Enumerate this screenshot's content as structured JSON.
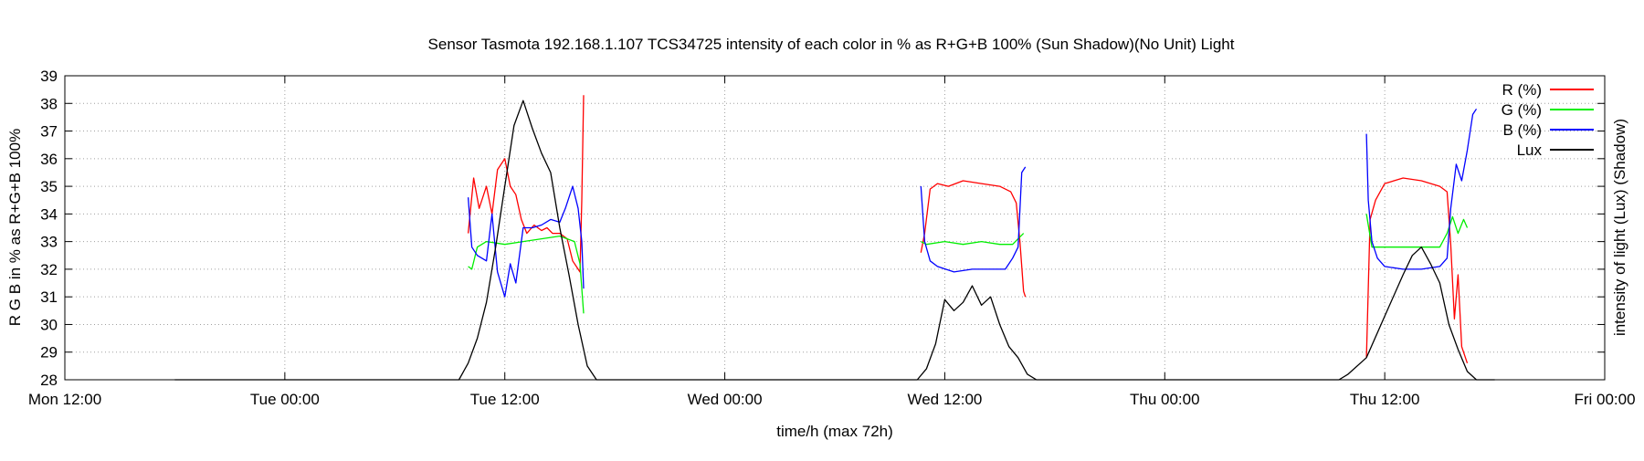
{
  "chart_data": {
    "type": "line",
    "title": "Sensor Tasmota 192.168.1.107 TCS34725 intensity of each color in % as R+G+B 100% (Sun Shadow)(No Unit) Light",
    "xlabel": "time/h (max 72h)",
    "ylabel": "R G B in % as R+G+B 100%",
    "y2label": "intensity of light (Lux) (Shadow)",
    "xlim": [
      0,
      84
    ],
    "ylim": [
      28,
      39
    ],
    "x_unit": "hours since Mon 12:00",
    "x_ticks": [
      {
        "x": 0,
        "label": "Mon 12:00"
      },
      {
        "x": 12,
        "label": "Tue 00:00"
      },
      {
        "x": 24,
        "label": "Tue 12:00"
      },
      {
        "x": 36,
        "label": "Wed 00:00"
      },
      {
        "x": 48,
        "label": "Wed 12:00"
      },
      {
        "x": 60,
        "label": "Thu 00:00"
      },
      {
        "x": 72,
        "label": "Thu 12:00"
      },
      {
        "x": 84,
        "label": "Fri 00:00"
      }
    ],
    "y_ticks": [
      28,
      29,
      30,
      31,
      32,
      33,
      34,
      35,
      36,
      37,
      38,
      39
    ],
    "grid": true,
    "legend_position": "top-right",
    "series": [
      {
        "name": "R (%)",
        "color": "#ff0000",
        "segments": [
          [
            [
              22.0,
              33.3
            ],
            [
              22.3,
              35.3
            ],
            [
              22.6,
              34.2
            ],
            [
              23.0,
              35.0
            ],
            [
              23.3,
              34.0
            ],
            [
              23.6,
              35.6
            ],
            [
              24.0,
              36.0
            ],
            [
              24.3,
              35.0
            ],
            [
              24.6,
              34.7
            ],
            [
              24.9,
              33.8
            ],
            [
              25.2,
              33.3
            ],
            [
              25.6,
              33.6
            ],
            [
              26.0,
              33.4
            ],
            [
              26.3,
              33.5
            ],
            [
              26.6,
              33.3
            ],
            [
              27.0,
              33.3
            ],
            [
              27.4,
              33.1
            ],
            [
              27.7,
              32.3
            ],
            [
              28.1,
              31.9
            ],
            [
              28.2,
              34.5
            ],
            [
              28.3,
              38.3
            ]
          ],
          [
            [
              46.7,
              32.6
            ],
            [
              46.9,
              33.3
            ],
            [
              47.2,
              34.9
            ],
            [
              47.6,
              35.1
            ],
            [
              48.2,
              35.0
            ],
            [
              49.0,
              35.2
            ],
            [
              50.0,
              35.1
            ],
            [
              51.0,
              35.0
            ],
            [
              51.6,
              34.8
            ],
            [
              51.9,
              34.4
            ],
            [
              52.1,
              33.0
            ],
            [
              52.3,
              31.2
            ],
            [
              52.4,
              31.0
            ]
          ],
          [
            [
              71.0,
              28.8
            ],
            [
              71.2,
              33.8
            ],
            [
              71.5,
              34.5
            ],
            [
              72.0,
              35.1
            ],
            [
              73.0,
              35.3
            ],
            [
              74.0,
              35.2
            ],
            [
              75.0,
              35.0
            ],
            [
              75.4,
              34.8
            ],
            [
              75.6,
              32.9
            ],
            [
              75.8,
              30.2
            ],
            [
              76.0,
              31.8
            ],
            [
              76.2,
              29.2
            ],
            [
              76.5,
              28.6
            ]
          ]
        ]
      },
      {
        "name": "G (%)",
        "color": "#00ee00",
        "segments": [
          [
            [
              22.0,
              32.1
            ],
            [
              22.2,
              32.0
            ],
            [
              22.5,
              32.8
            ],
            [
              23.0,
              33.0
            ],
            [
              24.0,
              32.9
            ],
            [
              25.0,
              33.0
            ],
            [
              26.0,
              33.1
            ],
            [
              27.0,
              33.2
            ],
            [
              27.8,
              33.0
            ],
            [
              28.1,
              32.2
            ],
            [
              28.3,
              30.4
            ]
          ],
          [
            [
              46.7,
              33.0
            ],
            [
              47.0,
              32.9
            ],
            [
              48.0,
              33.0
            ],
            [
              49.0,
              32.9
            ],
            [
              50.0,
              33.0
            ],
            [
              51.0,
              32.9
            ],
            [
              51.7,
              32.9
            ],
            [
              52.0,
              33.1
            ],
            [
              52.3,
              33.3
            ]
          ],
          [
            [
              71.0,
              34.0
            ],
            [
              71.3,
              32.8
            ],
            [
              72.0,
              32.8
            ],
            [
              73.0,
              32.8
            ],
            [
              74.0,
              32.8
            ],
            [
              75.0,
              32.8
            ],
            [
              75.4,
              33.3
            ],
            [
              75.7,
              33.9
            ],
            [
              76.0,
              33.3
            ],
            [
              76.3,
              33.8
            ],
            [
              76.5,
              33.5
            ]
          ]
        ]
      },
      {
        "name": "B (%)",
        "color": "#0000ff",
        "segments": [
          [
            [
              22.0,
              34.6
            ],
            [
              22.2,
              32.8
            ],
            [
              22.5,
              32.5
            ],
            [
              23.0,
              32.3
            ],
            [
              23.3,
              34.0
            ],
            [
              23.6,
              31.9
            ],
            [
              24.0,
              31.0
            ],
            [
              24.3,
              32.2
            ],
            [
              24.6,
              31.5
            ],
            [
              25.0,
              33.5
            ],
            [
              25.5,
              33.5
            ],
            [
              26.0,
              33.6
            ],
            [
              26.5,
              33.8
            ],
            [
              27.0,
              33.7
            ],
            [
              27.3,
              34.2
            ],
            [
              27.7,
              35.0
            ],
            [
              28.0,
              34.2
            ],
            [
              28.2,
              33.0
            ],
            [
              28.3,
              31.3
            ]
          ],
          [
            [
              46.7,
              35.0
            ],
            [
              46.9,
              33.0
            ],
            [
              47.2,
              32.3
            ],
            [
              47.6,
              32.1
            ],
            [
              48.5,
              31.9
            ],
            [
              49.5,
              32.0
            ],
            [
              50.5,
              32.0
            ],
            [
              51.3,
              32.0
            ],
            [
              51.7,
              32.4
            ],
            [
              52.0,
              32.8
            ],
            [
              52.2,
              35.5
            ],
            [
              52.4,
              35.7
            ]
          ],
          [
            [
              71.0,
              36.9
            ],
            [
              71.1,
              34.5
            ],
            [
              71.3,
              33.0
            ],
            [
              71.6,
              32.4
            ],
            [
              72.0,
              32.1
            ],
            [
              73.0,
              32.0
            ],
            [
              74.0,
              32.0
            ],
            [
              75.0,
              32.1
            ],
            [
              75.4,
              32.4
            ],
            [
              75.6,
              34.2
            ],
            [
              75.9,
              35.8
            ],
            [
              76.2,
              35.2
            ],
            [
              76.5,
              36.3
            ],
            [
              76.8,
              37.6
            ],
            [
              77.0,
              37.8
            ]
          ]
        ]
      },
      {
        "name": "Lux",
        "color": "#000000",
        "segments": [
          [
            [
              6.0,
              28.0
            ],
            [
              21.5,
              28.0
            ],
            [
              22.0,
              28.6
            ],
            [
              22.5,
              29.5
            ],
            [
              23.0,
              30.8
            ],
            [
              23.5,
              32.8
            ],
            [
              24.0,
              35.0
            ],
            [
              24.5,
              37.2
            ],
            [
              25.0,
              38.1
            ],
            [
              25.5,
              37.1
            ],
            [
              26.0,
              36.2
            ],
            [
              26.5,
              35.5
            ],
            [
              27.0,
              33.5
            ],
            [
              27.5,
              31.8
            ],
            [
              28.0,
              30.0
            ],
            [
              28.5,
              28.5
            ],
            [
              29.0,
              28.0
            ],
            [
              46.5,
              28.0
            ],
            [
              47.0,
              28.4
            ],
            [
              47.5,
              29.3
            ],
            [
              48.0,
              30.9
            ],
            [
              48.5,
              30.5
            ],
            [
              49.0,
              30.8
            ],
            [
              49.5,
              31.4
            ],
            [
              50.0,
              30.7
            ],
            [
              50.5,
              31.0
            ],
            [
              51.0,
              30.0
            ],
            [
              51.5,
              29.2
            ],
            [
              52.0,
              28.8
            ],
            [
              52.5,
              28.2
            ],
            [
              53.0,
              28.0
            ],
            [
              69.5,
              28.0
            ],
            [
              70.0,
              28.2
            ],
            [
              71.0,
              28.8
            ],
            [
              72.0,
              30.3
            ],
            [
              73.0,
              31.8
            ],
            [
              73.5,
              32.5
            ],
            [
              74.0,
              32.8
            ],
            [
              74.5,
              32.2
            ],
            [
              75.0,
              31.5
            ],
            [
              75.5,
              30.0
            ],
            [
              76.0,
              29.1
            ],
            [
              76.5,
              28.3
            ],
            [
              77.0,
              28.0
            ],
            [
              78.0,
              28.0
            ]
          ]
        ]
      }
    ]
  }
}
